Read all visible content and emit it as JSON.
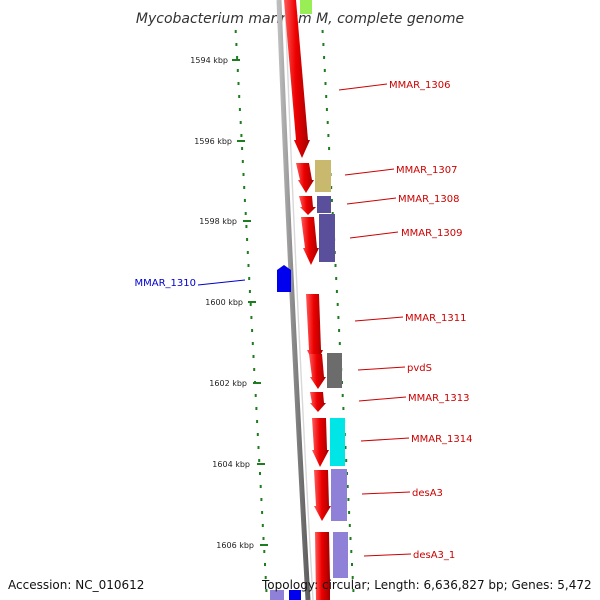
{
  "title": "Mycobacterium marinum M, complete genome",
  "accession": "Accession: NC_010612",
  "topology": "Topology: circular; Length: 6,636,827 bp; Genes: 5,472",
  "ticks": [
    "1594 kbp",
    "1596 kbp",
    "1598 kbp",
    "1600 kbp",
    "1602 kbp",
    "1604 kbp",
    "1606 kbp"
  ],
  "colors": {
    "tick": "#1e7d1e",
    "backbone": "#7f7f7f",
    "gene_forward": "#e60000",
    "label_red": "#cc0000",
    "label_blue": "#0000cc",
    "reverse_gene": "#0000ee",
    "khaki": "#c8b96e",
    "slate": "#5a4f9a",
    "grey": "#6c6c6c",
    "cyan": "#00e5e5",
    "lavender": "#8f80d8",
    "lime": "#99ee55"
  },
  "genes": [
    {
      "label": "MMAR_1306"
    },
    {
      "label": "MMAR_1307"
    },
    {
      "label": "MMAR_1308"
    },
    {
      "label": "MMAR_1309"
    },
    {
      "label": "MMAR_1310"
    },
    {
      "label": "MMAR_1311"
    },
    {
      "label": "pvdS"
    },
    {
      "label": "MMAR_1313"
    },
    {
      "label": "MMAR_1314"
    },
    {
      "label": "desA3"
    },
    {
      "label": "desA3_1"
    }
  ]
}
